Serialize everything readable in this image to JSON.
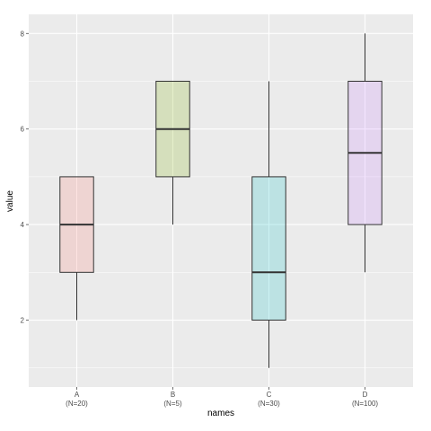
{
  "chart_data": {
    "type": "boxplot",
    "title": "",
    "xlabel": "names",
    "ylabel": "value",
    "ylim": [
      0.6,
      8.4
    ],
    "y_ticks": [
      2,
      4,
      6,
      8
    ],
    "grid": true,
    "legend": "none",
    "categories": [
      "A",
      "B",
      "C",
      "D"
    ],
    "category_sublabels": [
      "(N=20)",
      "(N=5)",
      "(N=30)",
      "(N=100)"
    ],
    "boxes": [
      {
        "category": "A",
        "min": 2,
        "q1": 3,
        "median": 4,
        "q3": 5,
        "max": 5,
        "color": "#f8766d"
      },
      {
        "category": "B",
        "min": 4,
        "q1": 5,
        "median": 6,
        "q3": 7,
        "max": 7,
        "color": "#7cae00"
      },
      {
        "category": "C",
        "min": 1,
        "q1": 2,
        "median": 3,
        "q3": 5,
        "max": 7,
        "color": "#00bfc4"
      },
      {
        "category": "D",
        "min": 3,
        "q1": 4,
        "median": 5.5,
        "q3": 7,
        "max": 8,
        "color": "#c77cff"
      }
    ],
    "colors": {
      "panel": "#ebebeb",
      "grid": "#ffffff",
      "axis_text": "#4d4d4d",
      "box_outline": "#333333"
    }
  }
}
